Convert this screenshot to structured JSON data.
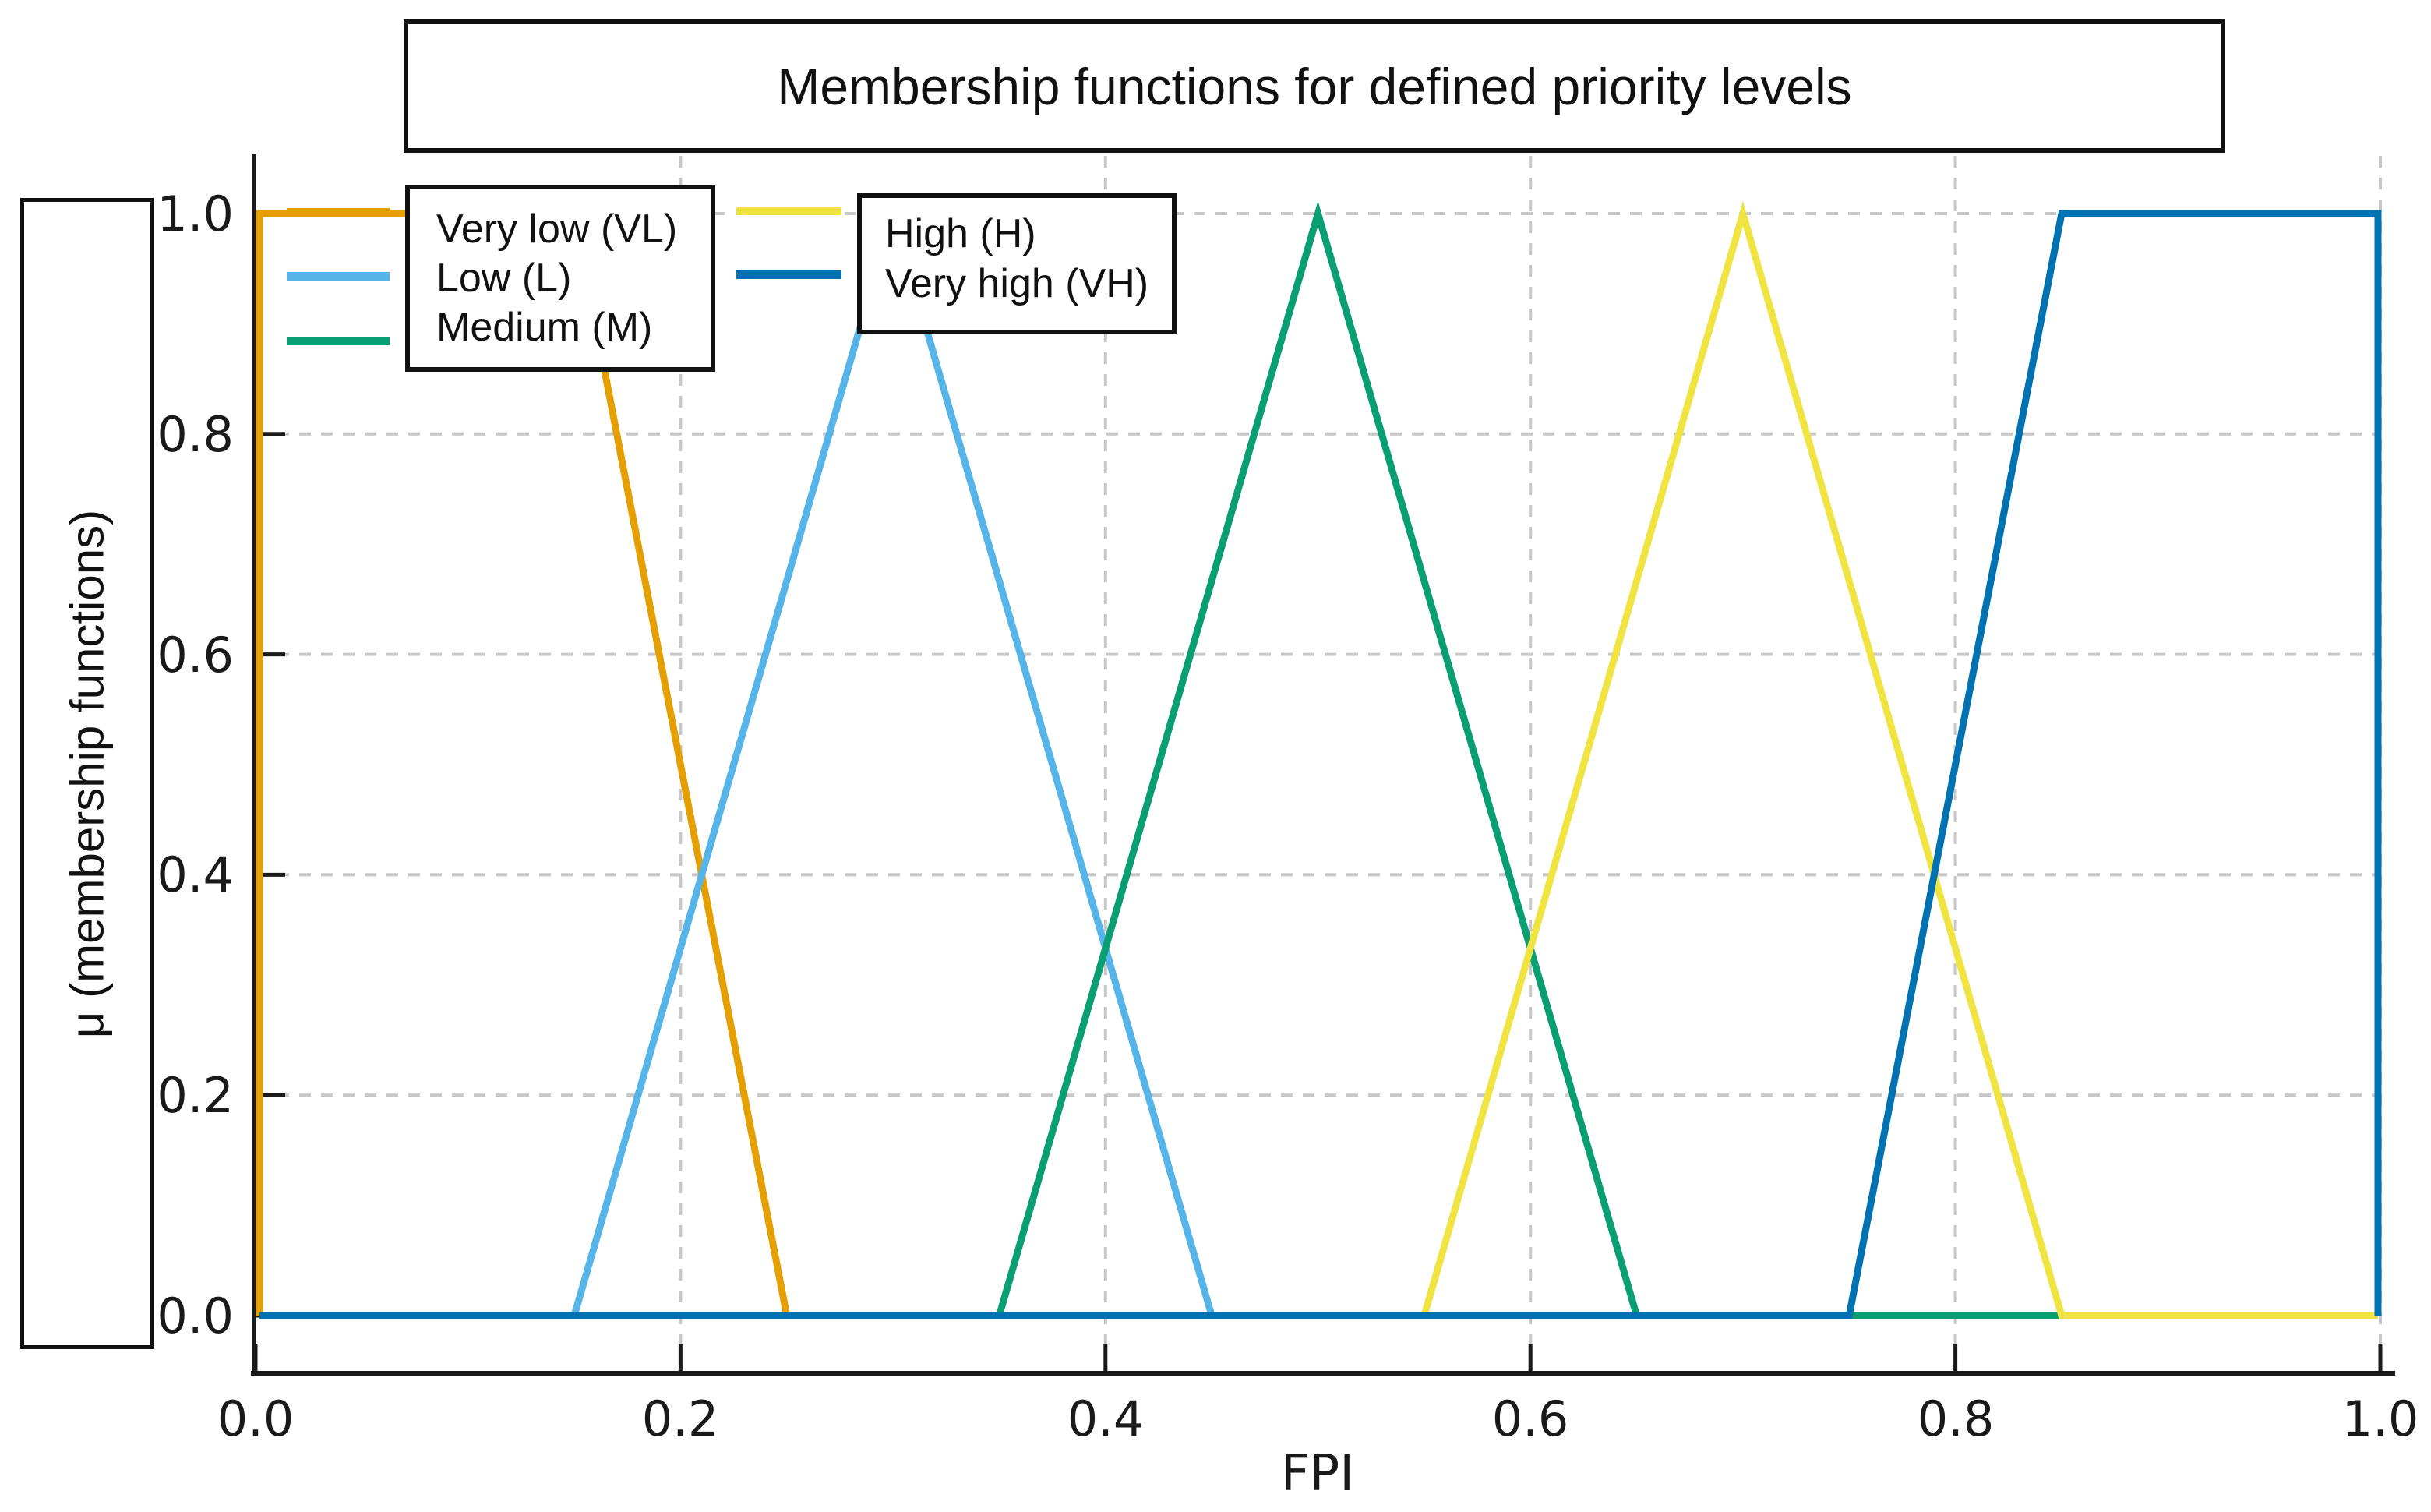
{
  "figure": {
    "title": "Membership functions for defined priority levels",
    "xlabel": "FPI",
    "ylabel": "μ (membership functions)"
  },
  "legend": {
    "box1": [
      "Very low (VL)",
      "Low (L)",
      "Medium (M)"
    ],
    "box2": [
      "High (H)",
      "Very high (VH)"
    ]
  },
  "chart_data": {
    "type": "line",
    "title": "Membership functions for defined priority levels",
    "xlabel": "FPI",
    "ylabel": "μ (membership functions)",
    "xlim": [
      0,
      1
    ],
    "ylim": [
      0,
      1
    ],
    "grid": true,
    "grid_style": "dashed",
    "legend_position": "upper left (two framed boxes)",
    "x_ticks": [
      0,
      0.2,
      0.4,
      0.6,
      0.8,
      1
    ],
    "y_ticks": [
      0,
      0.2,
      0.4,
      0.6,
      0.8,
      1
    ],
    "x_tick_labels": [
      "0.0",
      "0.2",
      "0.4",
      "0.6",
      "0.8",
      "1.0"
    ],
    "y_tick_labels": [
      "0.0",
      "0.2",
      "0.4",
      "0.6",
      "0.8",
      "1.0"
    ],
    "series": [
      {
        "name": "Very low (VL)",
        "abbr": "VL",
        "color": "#E69F00",
        "shape": "trapezoid",
        "points": [
          [
            0,
            0
          ],
          [
            0,
            1
          ],
          [
            0.15,
            1
          ],
          [
            0.25,
            0
          ],
          [
            1,
            0
          ]
        ]
      },
      {
        "name": "Low (L)",
        "abbr": "L",
        "color": "#56B4E9",
        "shape": "triangle",
        "points": [
          [
            0,
            0
          ],
          [
            0.15,
            0
          ],
          [
            0.3,
            1
          ],
          [
            0.45,
            0
          ],
          [
            1,
            0
          ]
        ]
      },
      {
        "name": "Medium (M)",
        "abbr": "M",
        "color": "#0A9E73",
        "shape": "triangle",
        "points": [
          [
            0,
            0
          ],
          [
            0.35,
            0
          ],
          [
            0.5,
            1
          ],
          [
            0.65,
            0
          ],
          [
            1,
            0
          ]
        ]
      },
      {
        "name": "High (H)",
        "abbr": "H",
        "color": "#F0E442",
        "shape": "triangle",
        "points": [
          [
            0,
            0
          ],
          [
            0.55,
            0
          ],
          [
            0.7,
            1
          ],
          [
            0.85,
            0
          ],
          [
            1,
            0
          ]
        ]
      },
      {
        "name": "Very high (VH)",
        "abbr": "VH",
        "color": "#0072B2",
        "shape": "trapezoid",
        "points": [
          [
            0,
            0
          ],
          [
            0.75,
            0
          ],
          [
            0.85,
            1
          ],
          [
            1,
            1
          ],
          [
            1,
            0
          ]
        ]
      }
    ]
  }
}
